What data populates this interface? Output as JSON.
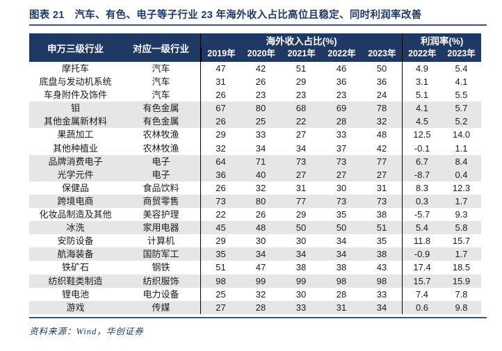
{
  "title": "图表 21　汽车、有色、电子等子行业 23 年海外收入占比高位且稳定、同时利润率改善",
  "table": {
    "headers": {
      "industry3": "申万三级行业",
      "industry1": "对应一级行业",
      "overseas_group": "海外收入占比(%)",
      "profit_group": "利润率(%)",
      "overseas_years": [
        "2019年",
        "2020年",
        "2021年",
        "2022年",
        "2023年"
      ],
      "profit_years": [
        "2022年",
        "2023年"
      ]
    },
    "rows": [
      {
        "industry3": "摩托车",
        "industry1": "汽车",
        "overseas": [
          "47",
          "42",
          "51",
          "46",
          "50"
        ],
        "profit": [
          "4.9",
          "5.4"
        ],
        "shaded": false
      },
      {
        "industry3": "底盘与发动机系统",
        "industry1": "汽车",
        "overseas": [
          "31",
          "26",
          "29",
          "36",
          "36"
        ],
        "profit": [
          "3.1",
          "4.1"
        ],
        "shaded": false
      },
      {
        "industry3": "车身附件及饰件",
        "industry1": "汽车",
        "overseas": [
          "26",
          "23",
          "23",
          "23",
          "24"
        ],
        "profit": [
          "5.1",
          "5.5"
        ],
        "shaded": false
      },
      {
        "industry3": "钼",
        "industry1": "有色金属",
        "overseas": [
          "67",
          "80",
          "68",
          "69",
          "78"
        ],
        "profit": [
          "4.1",
          "5.7"
        ],
        "shaded": true
      },
      {
        "industry3": "其他金属新材料",
        "industry1": "有色金属",
        "overseas": [
          "26",
          "25",
          "22",
          "28",
          "32"
        ],
        "profit": [
          "4.5",
          "5.2"
        ],
        "shaded": true
      },
      {
        "industry3": "果蔬加工",
        "industry1": "农林牧渔",
        "overseas": [
          "29",
          "33",
          "27",
          "33",
          "48"
        ],
        "profit": [
          "12.5",
          "14.0"
        ],
        "shaded": false
      },
      {
        "industry3": "其他种植业",
        "industry1": "农林牧渔",
        "overseas": [
          "32",
          "34",
          "34",
          "37",
          "42"
        ],
        "profit": [
          "-0.1",
          "1.1"
        ],
        "shaded": false
      },
      {
        "industry3": "品牌消费电子",
        "industry1": "电子",
        "overseas": [
          "64",
          "71",
          "73",
          "73",
          "77"
        ],
        "profit": [
          "6.7",
          "8.4"
        ],
        "shaded": true
      },
      {
        "industry3": "光学元件",
        "industry1": "电子",
        "overseas": [
          "36",
          "40",
          "27",
          "27",
          "27"
        ],
        "profit": [
          "-8.7",
          "0.4"
        ],
        "shaded": true
      },
      {
        "industry3": "保健品",
        "industry1": "食品饮料",
        "overseas": [
          "26",
          "32",
          "31",
          "30",
          "31"
        ],
        "profit": [
          "8.3",
          "12.3"
        ],
        "shaded": false
      },
      {
        "industry3": "跨境电商",
        "industry1": "商贸零售",
        "overseas": [
          "73",
          "80",
          "77",
          "73",
          "73"
        ],
        "profit": [
          "0.3",
          "1.7"
        ],
        "shaded": true
      },
      {
        "industry3": "化妆品制造及其他",
        "industry1": "美容护理",
        "overseas": [
          "22",
          "26",
          "29",
          "35",
          "38"
        ],
        "profit": [
          "-5.7",
          "9.3"
        ],
        "shaded": false
      },
      {
        "industry3": "冰洗",
        "industry1": "家用电器",
        "overseas": [
          "45",
          "48",
          "50",
          "50",
          "51"
        ],
        "profit": [
          "5.4",
          "5.8"
        ],
        "shaded": true
      },
      {
        "industry3": "安防设备",
        "industry1": "计算机",
        "overseas": [
          "29",
          "30",
          "30",
          "34",
          "35"
        ],
        "profit": [
          "11.8",
          "15.7"
        ],
        "shaded": false
      },
      {
        "industry3": "航海装备",
        "industry1": "国防军工",
        "overseas": [
          "35",
          "34",
          "34",
          "34",
          "38"
        ],
        "profit": [
          "-0.9",
          "1.7"
        ],
        "shaded": true
      },
      {
        "industry3": "铁矿石",
        "industry1": "钢铁",
        "overseas": [
          "51",
          "47",
          "38",
          "38",
          "43"
        ],
        "profit": [
          "17.4",
          "18.5"
        ],
        "shaded": false
      },
      {
        "industry3": "纺织鞋类制造",
        "industry1": "纺织服饰",
        "overseas": [
          "98",
          "99",
          "99",
          "98",
          "98"
        ],
        "profit": [
          "15.7",
          "15.9"
        ],
        "shaded": true
      },
      {
        "industry3": "锂电池",
        "industry1": "电力设备",
        "overseas": [
          "25",
          "32",
          "30",
          "28",
          "33"
        ],
        "profit": [
          "7.4",
          "7.8"
        ],
        "shaded": false
      },
      {
        "industry3": "游戏",
        "industry1": "传媒",
        "overseas": [
          "27",
          "28",
          "33",
          "31",
          "34"
        ],
        "profit": [
          "0.6",
          "9.8"
        ],
        "shaded": true
      }
    ]
  },
  "footer": {
    "source": "资料来源：Wind，华创证券"
  },
  "colors": {
    "header_bg": "#1F3864",
    "accent_line": "#2F5597",
    "row_shaded": "#E7E6E6",
    "title_text": "#1E3A68",
    "footer_text": "#17365D"
  }
}
